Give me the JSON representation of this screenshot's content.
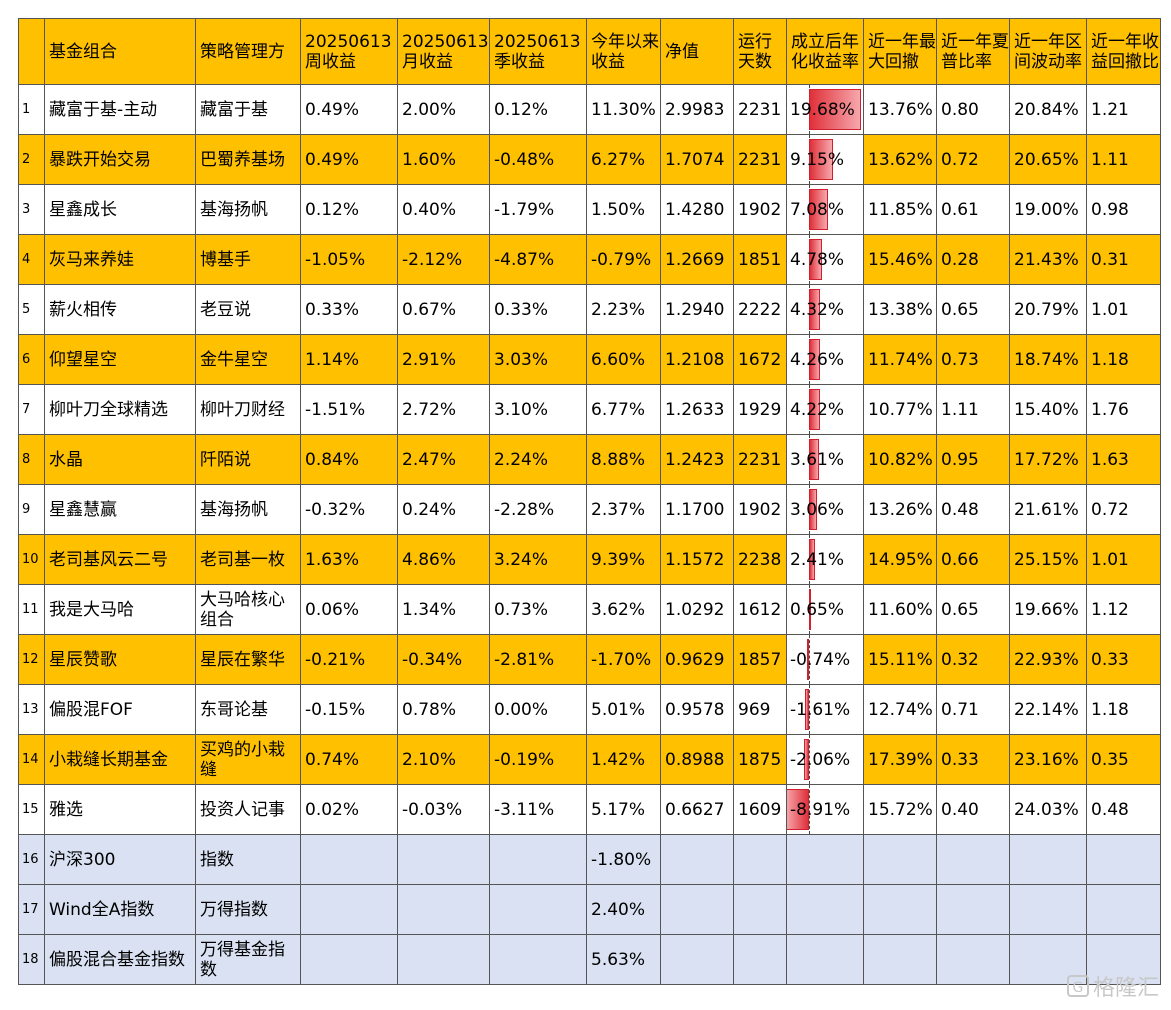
{
  "headers": [
    "",
    "基金组合",
    "策略管理方",
    "20250613周收益",
    "20250613月收益",
    "20250613季收益",
    "今年以来收益",
    "净值",
    "运行天数",
    "成立后年化收益率",
    "近一年最大回撤",
    "近一年夏普比率",
    "近一年区间波动率",
    "近一年收益回撤比"
  ],
  "rows": [
    [
      "1",
      "藏富于基-主动",
      "藏富于基",
      "0.49%",
      "2.00%",
      "0.12%",
      "11.30%",
      "2.9983",
      "2231",
      "19.68%",
      "13.76%",
      "0.80",
      "20.84%",
      "1.21"
    ],
    [
      "2",
      "暴跌开始交易",
      "巴蜀养基场",
      "0.49%",
      "1.60%",
      "-0.48%",
      "6.27%",
      "1.7074",
      "2231",
      "9.15%",
      "13.62%",
      "0.72",
      "20.65%",
      "1.11"
    ],
    [
      "3",
      "星鑫成长",
      "基海扬帆",
      "0.12%",
      "0.40%",
      "-1.79%",
      "1.50%",
      "1.4280",
      "1902",
      "7.08%",
      "11.85%",
      "0.61",
      "19.00%",
      "0.98"
    ],
    [
      "4",
      "灰马来养娃",
      "博基手",
      "-1.05%",
      "-2.12%",
      "-4.87%",
      "-0.79%",
      "1.2669",
      "1851",
      "4.78%",
      "15.46%",
      "0.28",
      "21.43%",
      "0.31"
    ],
    [
      "5",
      "薪火相传",
      "老豆说",
      "0.33%",
      "0.67%",
      "0.33%",
      "2.23%",
      "1.2940",
      "2222",
      "4.32%",
      "13.38%",
      "0.65",
      "20.79%",
      "1.01"
    ],
    [
      "6",
      "仰望星空",
      "金牛星空",
      "1.14%",
      "2.91%",
      "3.03%",
      "6.60%",
      "1.2108",
      "1672",
      "4.26%",
      "11.74%",
      "0.73",
      "18.74%",
      "1.18"
    ],
    [
      "7",
      "柳叶刀全球精选",
      "柳叶刀财经",
      "-1.51%",
      "2.72%",
      "3.10%",
      "6.77%",
      "1.2633",
      "1929",
      "4.22%",
      "10.77%",
      "1.11",
      "15.40%",
      "1.76"
    ],
    [
      "8",
      "水晶",
      "阡陌说",
      "0.84%",
      "2.47%",
      "2.24%",
      "8.88%",
      "1.2423",
      "2231",
      "3.61%",
      "10.82%",
      "0.95",
      "17.72%",
      "1.63"
    ],
    [
      "9",
      "星鑫慧赢",
      "基海扬帆",
      "-0.32%",
      "0.24%",
      "-2.28%",
      "2.37%",
      "1.1700",
      "1902",
      "3.06%",
      "13.26%",
      "0.48",
      "21.61%",
      "0.72"
    ],
    [
      "10",
      "老司基风云二号",
      "老司基一枚",
      "1.63%",
      "4.86%",
      "3.24%",
      "9.39%",
      "1.1572",
      "2238",
      "2.41%",
      "14.95%",
      "0.66",
      "25.15%",
      "1.01"
    ],
    [
      "11",
      "我是大马哈",
      "大马哈核心组合",
      "0.06%",
      "1.34%",
      "0.73%",
      "3.62%",
      "1.0292",
      "1612",
      "0.65%",
      "11.60%",
      "0.65",
      "19.66%",
      "1.12"
    ],
    [
      "12",
      "星辰赞歌",
      "星辰在繁华",
      "-0.21%",
      "-0.34%",
      "-2.81%",
      "-1.70%",
      "0.9629",
      "1857",
      "-0.74%",
      "15.11%",
      "0.32",
      "22.93%",
      "0.33"
    ],
    [
      "13",
      "偏股混FOF",
      "东哥论基",
      "-0.15%",
      "0.78%",
      "0.00%",
      "5.01%",
      "0.9578",
      "969",
      "-1.61%",
      "12.74%",
      "0.71",
      "22.14%",
      "1.18"
    ],
    [
      "14",
      "小栽缝长期基金",
      "买鸡的小栽缝",
      "0.74%",
      "2.10%",
      "-0.19%",
      "1.42%",
      "0.8988",
      "1875",
      "-2.06%",
      "17.39%",
      "0.33",
      "23.16%",
      "0.35"
    ],
    [
      "15",
      "雅选",
      "投资人记事",
      "0.02%",
      "-0.03%",
      "-3.11%",
      "5.17%",
      "0.6627",
      "1609",
      "-8.91%",
      "15.72%",
      "0.40",
      "24.03%",
      "0.48"
    ],
    [
      "16",
      "沪深300",
      "指数",
      "",
      "",
      "",
      "-1.80%",
      "",
      "",
      "",
      "",
      "",
      "",
      ""
    ],
    [
      "17",
      "Wind全A指数",
      "万得指数",
      "",
      "",
      "",
      "2.40%",
      "",
      "",
      "",
      "",
      "",
      "",
      ""
    ],
    [
      "18",
      "偏股混合基金指数",
      "万得基金指数",
      "",
      "",
      "",
      "5.63%",
      "",
      "",
      "",
      "",
      "",
      "",
      ""
    ]
  ],
  "annualized_values": [
    19.68,
    9.15,
    7.08,
    4.78,
    4.32,
    4.26,
    4.22,
    3.61,
    3.06,
    2.41,
    0.65,
    -0.74,
    -1.61,
    -2.06,
    -8.91
  ],
  "colors": {
    "header": "#ffc000",
    "stripe": "#ffc000",
    "benchmark": "#d9e1f2",
    "bar": "#e0303a"
  },
  "watermark": {
    "icon": "G",
    "text": "格隆汇"
  }
}
